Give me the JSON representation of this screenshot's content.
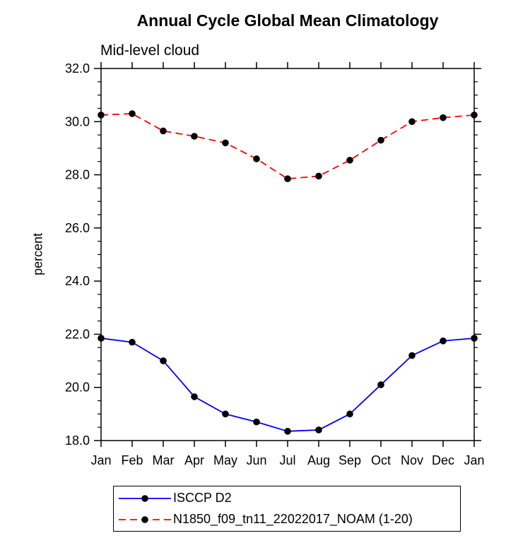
{
  "chart_data": {
    "type": "line",
    "title": "Annual Cycle Global Mean Climatology",
    "subtitle": "Mid-level cloud",
    "xlabel": "",
    "ylabel": "percent",
    "categories": [
      "Jan",
      "Feb",
      "Mar",
      "Apr",
      "May",
      "Jun",
      "Jul",
      "Aug",
      "Sep",
      "Oct",
      "Nov",
      "Dec",
      "Jan"
    ],
    "ylim": [
      18.0,
      32.0
    ],
    "y_major_step": 2.0,
    "y_minor_step": 0.5,
    "y_tick_labels": [
      "18.0",
      "20.0",
      "22.0",
      "24.0",
      "26.0",
      "28.0",
      "30.0",
      "32.0"
    ],
    "grid": false,
    "legend_position": "bottom-left",
    "frame_color": "#000000",
    "background_color": "#ffffff",
    "series": [
      {
        "name": "ISCCP D2",
        "color": "#0000ff",
        "line": "solid",
        "marker": "circle",
        "marker_color": "#000000",
        "values": [
          21.85,
          21.7,
          21.0,
          19.65,
          19.0,
          18.7,
          18.35,
          18.4,
          19.0,
          20.1,
          21.2,
          21.75,
          21.85
        ]
      },
      {
        "name": "N1850_f09_tn11_22022017_NOAM (1-20)",
        "color": "#ff0000",
        "line": "dashed",
        "marker": "circle",
        "marker_color": "#000000",
        "values": [
          30.25,
          30.3,
          29.65,
          29.45,
          29.2,
          28.6,
          27.85,
          27.95,
          28.55,
          29.3,
          30.0,
          30.15,
          30.25
        ]
      }
    ]
  }
}
